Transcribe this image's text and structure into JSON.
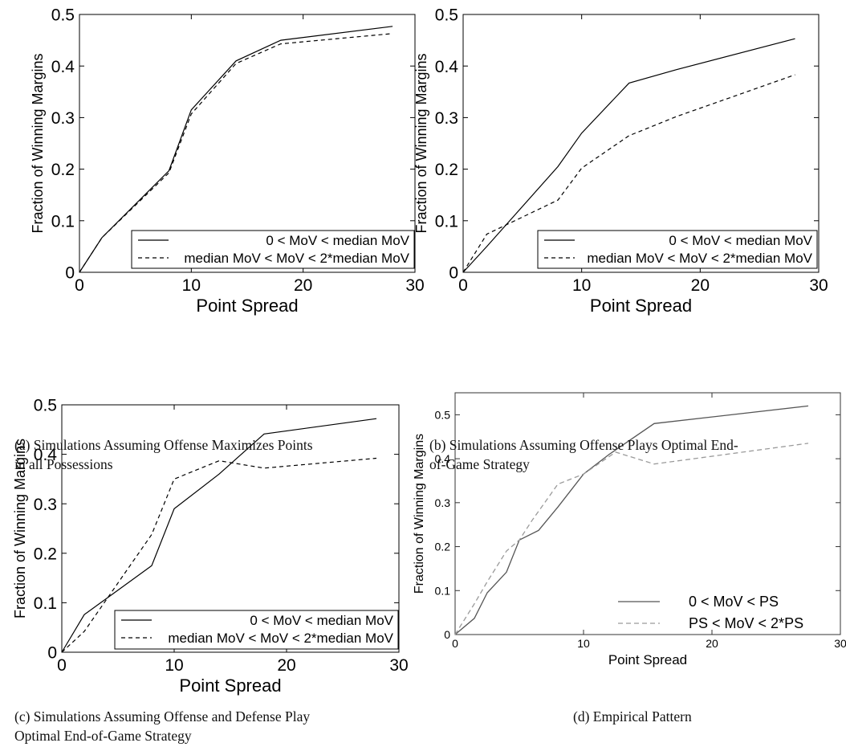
{
  "chart_data": [
    {
      "type": "line",
      "ylabel": "Fraction of Winning Margins",
      "xlabel": "Point Spread",
      "xlim": [
        0,
        30
      ],
      "ylim": [
        0,
        0.5
      ],
      "xticks": [
        "0",
        "10",
        "20",
        "30"
      ],
      "yticks": [
        "0",
        "0.1",
        "0.2",
        "0.3",
        "0.4",
        "0.5"
      ],
      "legend_position": "bottom-right",
      "series": [
        {
          "name": "0 < MoV < median MoV",
          "style": "solid",
          "color": "#000000",
          "x": [
            0,
            2,
            8,
            10,
            14,
            18,
            28
          ],
          "y": [
            0,
            0.067,
            0.197,
            0.315,
            0.41,
            0.45,
            0.477
          ]
        },
        {
          "name": "median MoV < MoV < 2*median MoV",
          "style": "dashed",
          "color": "#000000",
          "x": [
            0,
            2,
            8,
            10,
            14,
            18,
            28
          ],
          "y": [
            0,
            0.067,
            0.193,
            0.307,
            0.405,
            0.443,
            0.463
          ]
        }
      ],
      "caption": "(a) Simulations Assuming Offense Maximizes Points in all Possessions",
      "caption_lines": [
        "(a) Simulations Assuming Offense Maximizes Points",
        "in all Possessions"
      ]
    },
    {
      "type": "line",
      "ylabel": "Fraction of Winning Margins",
      "xlabel": "Point Spread",
      "xlim": [
        0,
        30
      ],
      "ylim": [
        0,
        0.5
      ],
      "xticks": [
        "0",
        "10",
        "20",
        "30"
      ],
      "yticks": [
        "0",
        "0.1",
        "0.2",
        "0.3",
        "0.4",
        "0.5"
      ],
      "legend_position": "bottom-right",
      "series": [
        {
          "name": "0 < MoV < median MoV",
          "style": "solid",
          "color": "#000000",
          "x": [
            0,
            2,
            8,
            10,
            14,
            18,
            28
          ],
          "y": [
            0,
            0.05,
            0.205,
            0.27,
            0.367,
            0.393,
            0.453
          ]
        },
        {
          "name": "median MoV < MoV < 2*median MoV",
          "style": "dashed",
          "color": "#000000",
          "x": [
            0,
            2,
            8,
            10,
            14,
            18,
            28
          ],
          "y": [
            0,
            0.074,
            0.14,
            0.202,
            0.265,
            0.302,
            0.383
          ]
        }
      ],
      "caption": "(b) Simulations Assuming Offense Plays Optimal End-of-Game Strategy",
      "caption_lines": [
        "(b) Simulations Assuming Offense Plays Optimal End-",
        "of-Game Strategy"
      ]
    },
    {
      "type": "line",
      "ylabel": "Fraction of Winning Margins",
      "xlabel": "Point Spread",
      "xlim": [
        0,
        30
      ],
      "ylim": [
        0,
        0.5
      ],
      "xticks": [
        "0",
        "10",
        "20",
        "30"
      ],
      "yticks": [
        "0",
        "0.1",
        "0.2",
        "0.3",
        "0.4",
        "0.5"
      ],
      "legend_position": "bottom-right",
      "series": [
        {
          "name": "0 < MoV < median MoV",
          "style": "solid",
          "color": "#000000",
          "x": [
            0,
            2,
            8,
            10,
            14,
            18,
            28
          ],
          "y": [
            0,
            0.076,
            0.175,
            0.29,
            0.36,
            0.441,
            0.472
          ]
        },
        {
          "name": "median MoV < MoV < 2*median MoV",
          "style": "dashed",
          "color": "#000000",
          "x": [
            0,
            2,
            8,
            10,
            14,
            18,
            28
          ],
          "y": [
            0,
            0.042,
            0.238,
            0.35,
            0.387,
            0.372,
            0.392
          ]
        }
      ],
      "caption": "(c) Simulations Assuming Offense and Defense Play Optimal End-of-Game Strategy",
      "caption_lines": [
        "(c) Simulations Assuming Offense and Defense Play",
        "Optimal End-of-Game Strategy"
      ]
    },
    {
      "type": "line",
      "ylabel": "Fraction of Winning Margins",
      "xlabel": "Point Spread",
      "xlim": [
        0,
        30
      ],
      "ylim": [
        0,
        0.55
      ],
      "xticks": [
        "0",
        "10",
        "20",
        "30"
      ],
      "yticks": [
        "0",
        "0.1",
        "0.2",
        "0.3",
        "0.4",
        "0.5"
      ],
      "legend_position": "bottom-right",
      "series": [
        {
          "name": "0 < MoV < PS",
          "style": "solid",
          "color": "#555555",
          "x": [
            0,
            1.5,
            2.5,
            4,
            5,
            6.5,
            8,
            10,
            12,
            15.5,
            27.5
          ],
          "y": [
            0,
            0.037,
            0.095,
            0.142,
            0.215,
            0.237,
            0.29,
            0.365,
            0.41,
            0.48,
            0.52
          ]
        },
        {
          "name": "PS < MoV < 2*PS",
          "style": "dashed",
          "color": "#9a9a9a",
          "x": [
            0,
            1.5,
            2.5,
            4,
            5,
            6,
            8,
            10,
            12.5,
            15.5,
            27.5
          ],
          "y": [
            0,
            0.07,
            0.12,
            0.19,
            0.215,
            0.26,
            0.342,
            0.365,
            0.415,
            0.388,
            0.435
          ]
        }
      ],
      "caption": "(d) Empirical Pattern"
    }
  ]
}
